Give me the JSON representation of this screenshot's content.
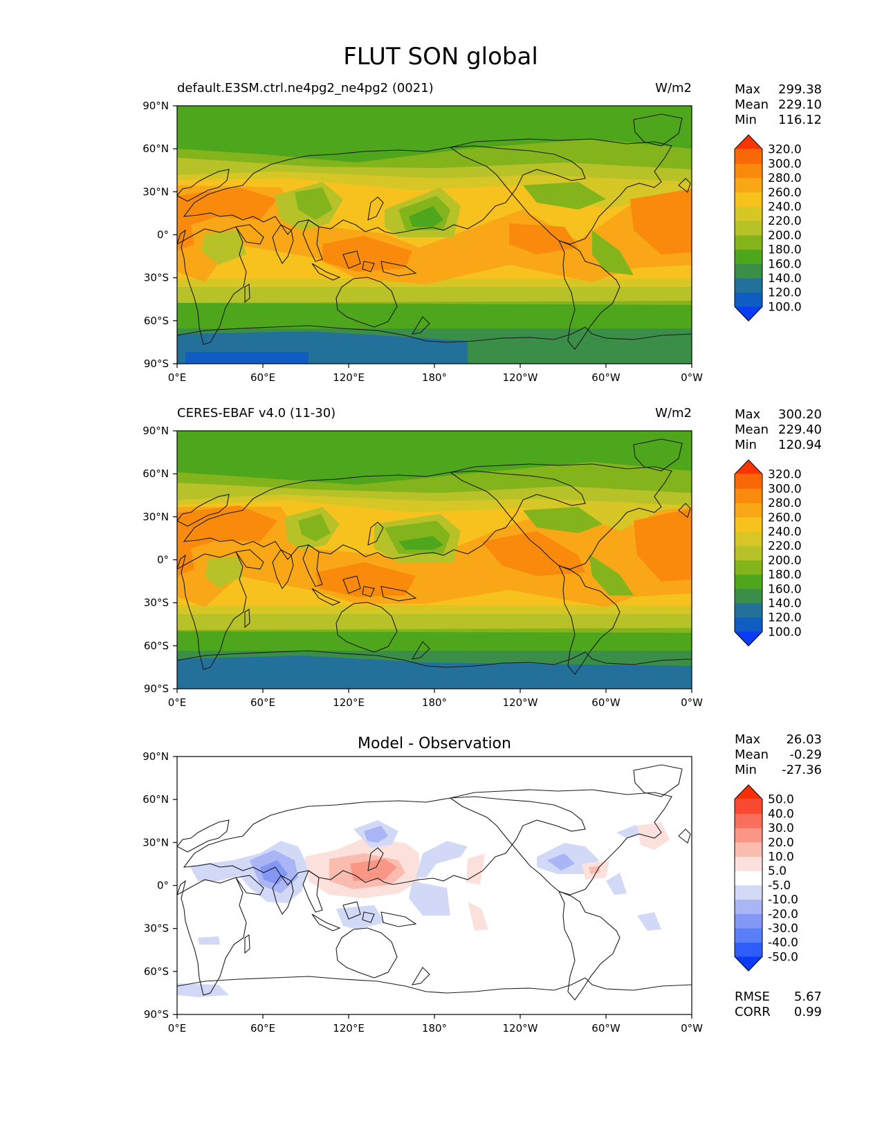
{
  "figure": {
    "title": "FLUT SON global"
  },
  "axes": {
    "lon_ticks": [
      "0°E",
      "60°E",
      "120°E",
      "180°",
      "120°W",
      "60°W",
      "0°W"
    ],
    "lat_ticks": [
      "90°N",
      "60°N",
      "30°N",
      "0°",
      "30°S",
      "60°S",
      "90°S"
    ]
  },
  "panels": [
    {
      "id": "model",
      "title_left": "default.E3SM.ctrl.ne4pg2_ne4pg2 (0021)",
      "title_center": "",
      "units": "W/m2",
      "stats": [
        {
          "label": "Max",
          "value": "299.38"
        },
        {
          "label": "Mean",
          "value": "229.10"
        },
        {
          "label": "Min",
          "value": "116.12"
        }
      ],
      "colorbar": {
        "levels": [
          "100.0",
          "120.0",
          "140.0",
          "160.0",
          "180.0",
          "200.0",
          "220.0",
          "240.0",
          "260.0",
          "280.0",
          "300.0",
          "320.0"
        ],
        "colors": [
          "#0a3cf5",
          "#0f5dc2",
          "#23709a",
          "#3b8e48",
          "#4ea61c",
          "#84b41c",
          "#b6c227",
          "#d6c726",
          "#f8c21e",
          "#f9a717",
          "#f98a0c",
          "#f96806",
          "#f93406"
        ]
      }
    },
    {
      "id": "obs",
      "title_left": "CERES-EBAF v4.0 (11-30)",
      "title_center": "",
      "units": "W/m2",
      "stats": [
        {
          "label": "Max",
          "value": "300.20"
        },
        {
          "label": "Mean",
          "value": "229.40"
        },
        {
          "label": "Min",
          "value": "120.94"
        }
      ],
      "colorbar": {
        "levels": [
          "100.0",
          "120.0",
          "140.0",
          "160.0",
          "180.0",
          "200.0",
          "220.0",
          "240.0",
          "260.0",
          "280.0",
          "300.0",
          "320.0"
        ],
        "colors": [
          "#0a3cf5",
          "#0f5dc2",
          "#23709a",
          "#3b8e48",
          "#4ea61c",
          "#84b41c",
          "#b6c227",
          "#d6c726",
          "#f8c21e",
          "#f9a717",
          "#f98a0c",
          "#f96806",
          "#f93406"
        ]
      }
    },
    {
      "id": "diff",
      "title_left": "",
      "title_center": "Model - Observation",
      "units": "",
      "stats": [
        {
          "label": "Max",
          "value": "26.03"
        },
        {
          "label": "Mean",
          "value": "-0.29"
        },
        {
          "label": "Min",
          "value": "-27.36"
        }
      ],
      "extra_stats": [
        {
          "label": "RMSE",
          "value": "5.67"
        },
        {
          "label": "CORR",
          "value": "0.99"
        }
      ],
      "colorbar": {
        "levels": [
          "-50.0",
          "-40.0",
          "-30.0",
          "-20.0",
          "-10.0",
          "-5.0",
          "5.0",
          "10.0",
          "20.0",
          "30.0",
          "40.0",
          "50.0"
        ],
        "colors": [
          "#0a3cf5",
          "#2e5ef7",
          "#5a7ef7",
          "#8397f5",
          "#a9b5f5",
          "#d2d9f7",
          "#ffffff",
          "#fce0dc",
          "#fbbcb0",
          "#fa9686",
          "#f8705c",
          "#f74a30",
          "#f62f08"
        ]
      }
    }
  ],
  "palette": {
    "model_bg": "#84b41c",
    "obs_bg": "#84b41c",
    "diff_bg": "#ffffff",
    "coast": "#1a1a1a"
  }
}
